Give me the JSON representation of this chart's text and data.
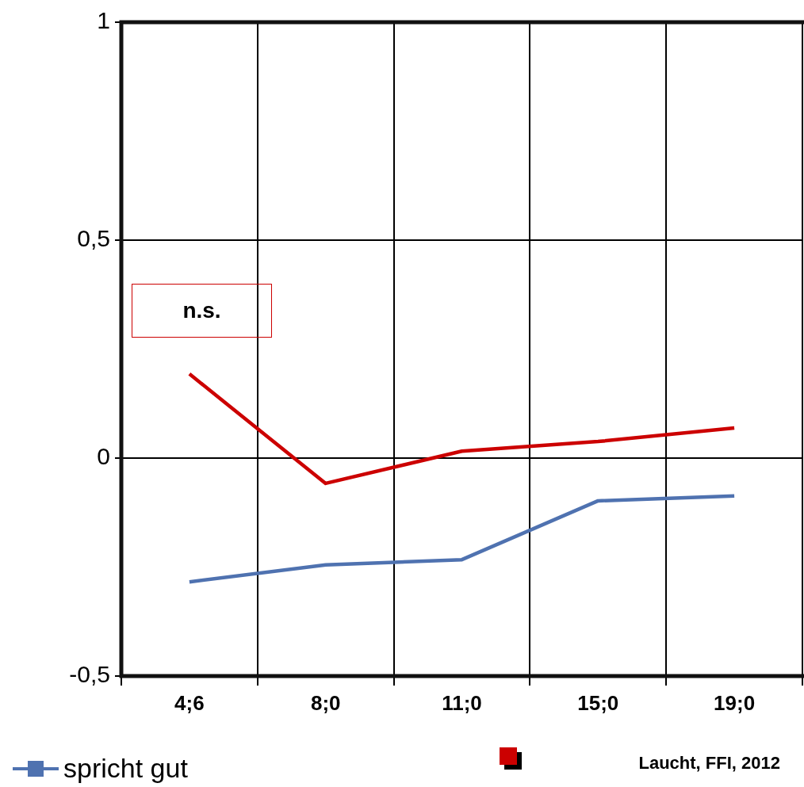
{
  "chart_data": {
    "type": "line",
    "categories": [
      "4;6",
      "8;0",
      "11;0",
      "15;0",
      "19;0"
    ],
    "series": [
      {
        "color": "#cc0000",
        "values": [
          0.193,
          -0.058,
          0.016,
          0.038,
          0.069
        ]
      },
      {
        "name": "spricht gut",
        "color": "#4f72b0",
        "values": [
          -0.284,
          -0.245,
          -0.233,
          -0.098,
          -0.087
        ]
      }
    ],
    "ylim": [
      -0.5,
      1
    ],
    "yticks": [
      {
        "value": -0.5,
        "label": "-0,5"
      },
      0,
      {
        "value": 0.5,
        "label": "0,5"
      },
      1
    ],
    "grid": true,
    "legend": "bottom left",
    "annotations": [
      "n.s.",
      "Laucht, FFI, 2012"
    ]
  }
}
